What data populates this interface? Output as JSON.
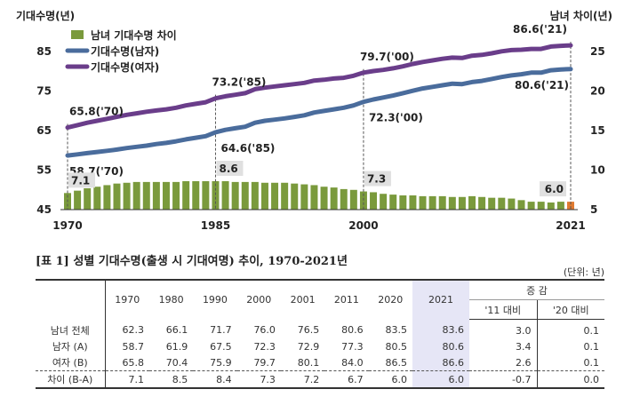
{
  "chart_data": {
    "type": "bar+line",
    "left_axis_title": "기대수명(년)",
    "right_axis_title": "남녀 차이(년)",
    "left_ylim": [
      45,
      90
    ],
    "left_ticks": [
      45,
      55,
      65,
      75,
      85
    ],
    "right_ylim": [
      5,
      27.5
    ],
    "right_ticks": [
      5,
      10,
      15,
      20,
      25
    ],
    "x_ticks": [
      "1970",
      "1985",
      "2000",
      "2021"
    ],
    "years": [
      1970,
      1971,
      1972,
      1973,
      1974,
      1975,
      1976,
      1977,
      1978,
      1979,
      1980,
      1981,
      1982,
      1983,
      1984,
      1985,
      1986,
      1987,
      1988,
      1989,
      1990,
      1991,
      1992,
      1993,
      1994,
      1995,
      1996,
      1997,
      1998,
      1999,
      2000,
      2001,
      2002,
      2003,
      2004,
      2005,
      2006,
      2007,
      2008,
      2009,
      2010,
      2011,
      2012,
      2013,
      2014,
      2015,
      2016,
      2017,
      2018,
      2019,
      2020,
      2021
    ],
    "series": [
      {
        "name": "남녀 기대수명 차이",
        "kind": "bar",
        "axis": "right",
        "color": "#7a9a3c",
        "highlight_color": "#e07a30",
        "values": [
          7.1,
          7.4,
          7.7,
          7.9,
          8.1,
          8.3,
          8.4,
          8.5,
          8.5,
          8.5,
          8.5,
          8.5,
          8.6,
          8.6,
          8.6,
          8.6,
          8.6,
          8.5,
          8.5,
          8.5,
          8.4,
          8.4,
          8.4,
          8.3,
          8.2,
          8.1,
          7.9,
          7.8,
          7.6,
          7.5,
          7.3,
          7.2,
          7.0,
          6.9,
          6.8,
          6.8,
          6.7,
          6.7,
          6.7,
          6.6,
          6.6,
          6.7,
          6.6,
          6.5,
          6.5,
          6.4,
          6.2,
          6.0,
          6.0,
          5.9,
          6.0,
          6.0
        ]
      },
      {
        "name": "기대수명(남자)",
        "kind": "line",
        "axis": "left",
        "color": "#4a6c9c",
        "values": [
          58.7,
          59.0,
          59.3,
          59.6,
          59.9,
          60.2,
          60.6,
          60.9,
          61.2,
          61.6,
          61.9,
          62.3,
          62.8,
          63.2,
          63.6,
          64.6,
          65.2,
          65.6,
          66.0,
          67.0,
          67.5,
          67.8,
          68.1,
          68.5,
          68.9,
          69.6,
          70.0,
          70.4,
          70.8,
          71.4,
          72.3,
          72.9,
          73.4,
          73.9,
          74.5,
          75.1,
          75.7,
          76.1,
          76.5,
          76.9,
          76.8,
          77.3,
          77.6,
          78.1,
          78.6,
          79.0,
          79.3,
          79.7,
          79.7,
          80.3,
          80.5,
          80.6
        ]
      },
      {
        "name": "기대수명(여자)",
        "kind": "line",
        "axis": "left",
        "color": "#6a3d8a",
        "values": [
          65.8,
          66.4,
          67.0,
          67.5,
          68.0,
          68.5,
          69.0,
          69.4,
          69.8,
          70.1,
          70.4,
          70.8,
          71.4,
          71.8,
          72.2,
          73.2,
          73.7,
          74.1,
          74.5,
          75.5,
          75.9,
          76.2,
          76.5,
          76.8,
          77.1,
          77.7,
          77.9,
          78.2,
          78.4,
          78.9,
          79.7,
          80.1,
          80.4,
          80.8,
          81.3,
          81.9,
          82.4,
          82.8,
          83.2,
          83.5,
          83.4,
          84.0,
          84.2,
          84.6,
          85.1,
          85.4,
          85.5,
          85.7,
          85.7,
          86.3,
          86.5,
          86.6
        ]
      }
    ],
    "annotations": [
      {
        "text": "65.8('70)",
        "year": 1970,
        "series": 2
      },
      {
        "text": "58.7('70)",
        "year": 1970,
        "series": 1
      },
      {
        "text": "7.1",
        "year": 1970,
        "series": 0
      },
      {
        "text": "73.2('85)",
        "year": 1985,
        "series": 2
      },
      {
        "text": "64.6('85)",
        "year": 1985,
        "series": 1
      },
      {
        "text": "8.6",
        "year": 1985,
        "series": 0
      },
      {
        "text": "79.7('00)",
        "year": 2000,
        "series": 2
      },
      {
        "text": "72.3('00)",
        "year": 2000,
        "series": 1
      },
      {
        "text": "7.3",
        "year": 2000,
        "series": 0
      },
      {
        "text": "86.6('21)",
        "year": 2021,
        "series": 2
      },
      {
        "text": "80.6('21)",
        "year": 2021,
        "series": 1
      },
      {
        "text": "6.0",
        "year": 2021,
        "series": 0
      }
    ]
  },
  "table": {
    "caption": "[표 1] 성별 기대수명(출생 시 기대여명) 추이, 1970-2021년",
    "unit": "(단위: 년)",
    "years": [
      "1970",
      "1980",
      "1990",
      "2000",
      "2001",
      "2011",
      "2020",
      "2021"
    ],
    "change_header": "증    감",
    "change_cols": [
      "'11 대비",
      "'20 대비"
    ],
    "rows": [
      {
        "label": "남녀 전체",
        "values": [
          "62.3",
          "66.1",
          "71.7",
          "76.0",
          "76.5",
          "80.6",
          "83.5",
          "83.6"
        ],
        "change": [
          "3.0",
          "0.1"
        ]
      },
      {
        "label": "남자 (A)",
        "values": [
          "58.7",
          "61.9",
          "67.5",
          "72.3",
          "72.9",
          "77.3",
          "80.5",
          "80.6"
        ],
        "change": [
          "3.4",
          "0.1"
        ]
      },
      {
        "label": "여자 (B)",
        "values": [
          "65.8",
          "70.4",
          "75.9",
          "79.7",
          "80.1",
          "84.0",
          "86.5",
          "86.6"
        ],
        "change": [
          "2.6",
          "0.1"
        ]
      },
      {
        "label": "차이 (B-A)",
        "values": [
          "7.1",
          "8.5",
          "8.4",
          "7.3",
          "7.2",
          "6.7",
          "6.0",
          "6.0"
        ],
        "change": [
          "-0.7",
          "0.0"
        ]
      }
    ]
  }
}
